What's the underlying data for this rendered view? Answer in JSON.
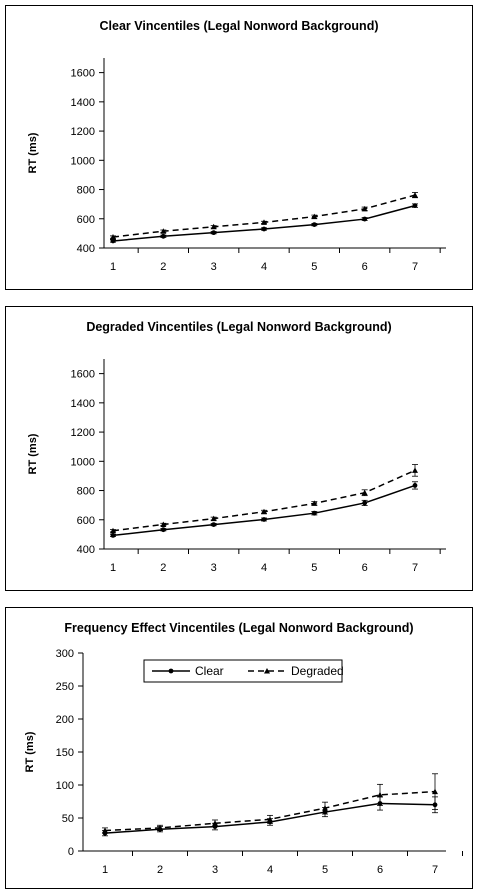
{
  "chart_data": [
    {
      "type": "line",
      "title": "Clear Vincentiles (Legal Nonword Background)",
      "ylabel": "RT (ms)",
      "xlabel": "",
      "categories": [
        "1",
        "2",
        "3",
        "4",
        "5",
        "6",
        "7"
      ],
      "ylim": [
        400,
        1700
      ],
      "yticks": [
        400,
        600,
        800,
        1000,
        1200,
        1400,
        1600
      ],
      "legend": false,
      "series": [
        {
          "style": "solid",
          "marker": "circle",
          "values": [
            448,
            480,
            505,
            530,
            560,
            598,
            690
          ],
          "errors": [
            8,
            8,
            8,
            8,
            8,
            10,
            12
          ]
        },
        {
          "style": "dashed",
          "marker": "triangle",
          "values": [
            475,
            515,
            545,
            575,
            615,
            668,
            762
          ],
          "errors": [
            8,
            8,
            8,
            8,
            10,
            12,
            18
          ]
        }
      ]
    },
    {
      "type": "line",
      "title": "Degraded Vincentiles (Legal Nonword Background)",
      "ylabel": "RT (ms)",
      "xlabel": "",
      "categories": [
        "1",
        "2",
        "3",
        "4",
        "5",
        "6",
        "7"
      ],
      "ylim": [
        400,
        1700
      ],
      "yticks": [
        400,
        600,
        800,
        1000,
        1200,
        1400,
        1600
      ],
      "legend": false,
      "series": [
        {
          "style": "solid",
          "marker": "circle",
          "values": [
            493,
            532,
            567,
            602,
            645,
            715,
            835
          ],
          "errors": [
            8,
            8,
            8,
            10,
            12,
            18,
            25
          ]
        },
        {
          "style": "dashed",
          "marker": "triangle",
          "values": [
            525,
            568,
            608,
            655,
            712,
            785,
            938
          ],
          "errors": [
            8,
            8,
            10,
            10,
            12,
            20,
            40
          ]
        }
      ]
    },
    {
      "type": "line",
      "title": "Frequency Effect Vincentiles (Legal Nonword Background)",
      "ylabel": "RT (ms)",
      "xlabel": "",
      "categories": [
        "1",
        "2",
        "3",
        "4",
        "5",
        "6",
        "7"
      ],
      "ylim": [
        0,
        300
      ],
      "yticks": [
        0,
        50,
        100,
        150,
        200,
        250,
        300
      ],
      "legend": true,
      "series": [
        {
          "name": "Clear",
          "style": "solid",
          "marker": "circle",
          "values": [
            27,
            33,
            37,
            44,
            59,
            72,
            70
          ],
          "errors": [
            4,
            4,
            5,
            5,
            7,
            10,
            12
          ]
        },
        {
          "name": "Degraded",
          "style": "dashed",
          "marker": "triangle",
          "values": [
            31,
            35,
            42,
            48,
            65,
            85,
            90
          ],
          "errors": [
            4,
            4,
            5,
            6,
            9,
            16,
            27
          ]
        }
      ]
    }
  ]
}
